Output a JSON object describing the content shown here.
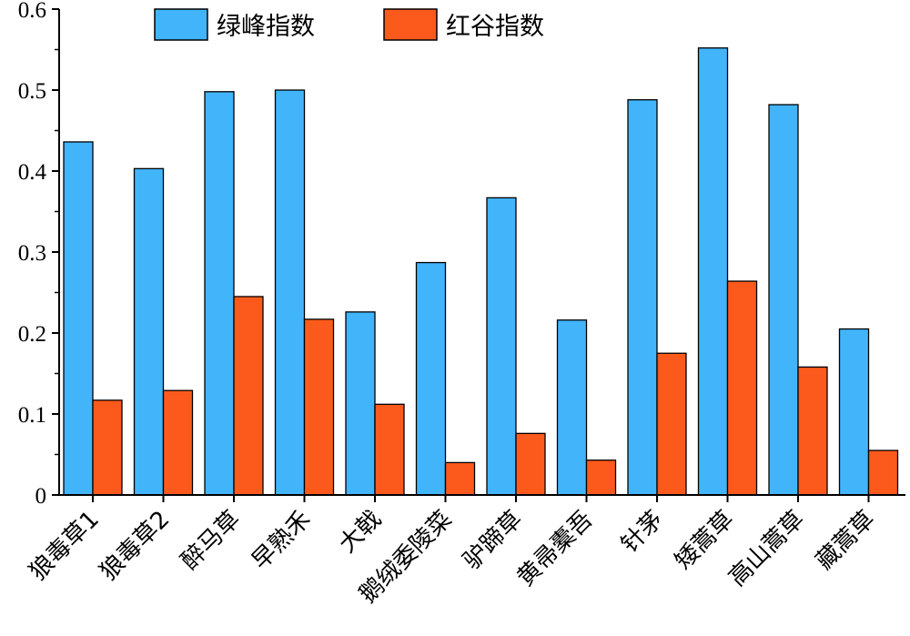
{
  "chart_data": {
    "type": "bar",
    "categories": [
      "狼毒草1",
      "狼毒草2",
      "醉马草",
      "早熟禾",
      "大戟",
      "鹅绒委陵菜",
      "驴蹄草",
      "黄帚橐吾",
      "针茅",
      "矮蒿草",
      "高山蒿草",
      "藏蒿草"
    ],
    "series": [
      {
        "name": "绿峰指数",
        "values": [
          0.436,
          0.403,
          0.498,
          0.5,
          0.226,
          0.287,
          0.367,
          0.216,
          0.488,
          0.552,
          0.482,
          0.205
        ]
      },
      {
        "name": "红谷指数",
        "values": [
          0.117,
          0.129,
          0.245,
          0.217,
          0.112,
          0.04,
          0.076,
          0.043,
          0.175,
          0.264,
          0.158,
          0.055
        ]
      }
    ],
    "colors": [
      "#42b4fa",
      "#fb5a1c"
    ],
    "ylim": [
      0,
      0.6
    ],
    "yticks": [
      "0",
      "0.1",
      "0.2",
      "0.3",
      "0.4",
      "0.5",
      "0.6"
    ],
    "xlabel": "",
    "ylabel": "",
    "grid": false,
    "legend_position": "top-center"
  }
}
